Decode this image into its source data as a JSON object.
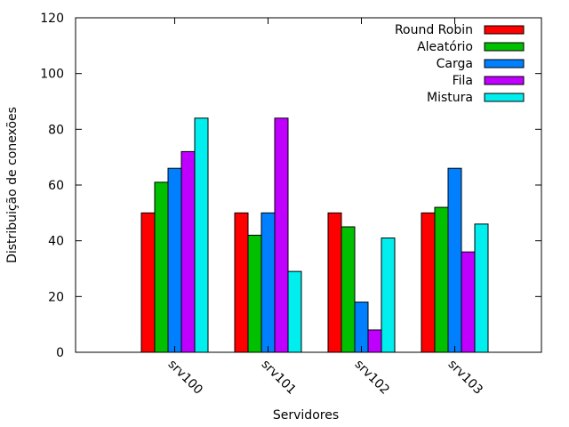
{
  "chart_data": {
    "type": "bar",
    "categories": [
      "srv100",
      "srv101",
      "srv102",
      "srv103"
    ],
    "series": [
      {
        "name": "Round Robin",
        "color": "#ff0000",
        "values": [
          50,
          50,
          50,
          50
        ]
      },
      {
        "name": "Aleatório",
        "color": "#00c000",
        "values": [
          61,
          42,
          45,
          52
        ]
      },
      {
        "name": "Carga",
        "color": "#0080ff",
        "values": [
          66,
          50,
          18,
          66
        ]
      },
      {
        "name": "Fila",
        "color": "#c000ff",
        "values": [
          72,
          84,
          8,
          36
        ]
      },
      {
        "name": "Mistura",
        "color": "#00eeee",
        "values": [
          84,
          29,
          41,
          46
        ]
      }
    ],
    "xlabel": "Servidores",
    "ylabel": "Distribuição de conexões",
    "ylim": [
      0,
      120
    ],
    "yticks": [
      0,
      20,
      40,
      60,
      80,
      100,
      120
    ],
    "grid": false,
    "legend_position": "top-right"
  }
}
